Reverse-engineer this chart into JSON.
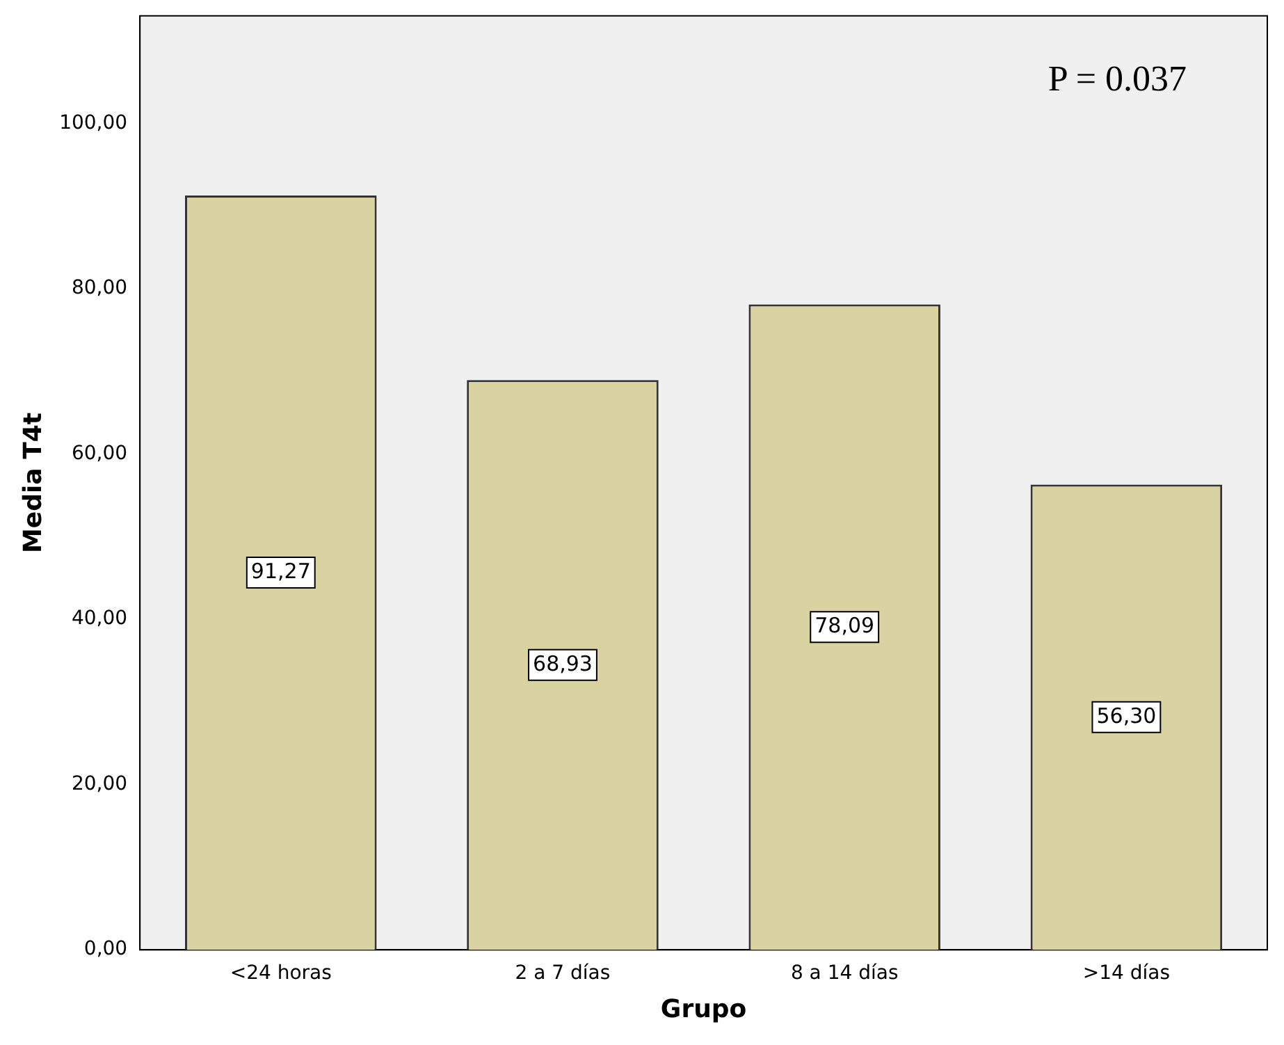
{
  "chart_data": {
    "type": "bar",
    "xlabel": "Grupo",
    "ylabel": "Media T4t",
    "categories": [
      "<24 horas",
      "2 a 7 días",
      "8 a 14 días",
      ">14 días"
    ],
    "values": [
      91.27,
      68.93,
      78.09,
      56.3
    ],
    "value_labels": [
      "91,27",
      "68,93",
      "78,09",
      "56,30"
    ],
    "color": "#d9d3a1",
    "ylim": [
      0,
      113
    ],
    "yticks": [
      {
        "value": 0,
        "label": "0,00"
      },
      {
        "value": 20,
        "label": "20,00"
      },
      {
        "value": 40,
        "label": "40,00"
      },
      {
        "value": 60,
        "label": "60,00"
      },
      {
        "value": 80,
        "label": "80,00"
      },
      {
        "value": 100,
        "label": "100,00"
      }
    ],
    "annotations": [
      "P = 0.037"
    ],
    "grid": false,
    "legend": false
  }
}
